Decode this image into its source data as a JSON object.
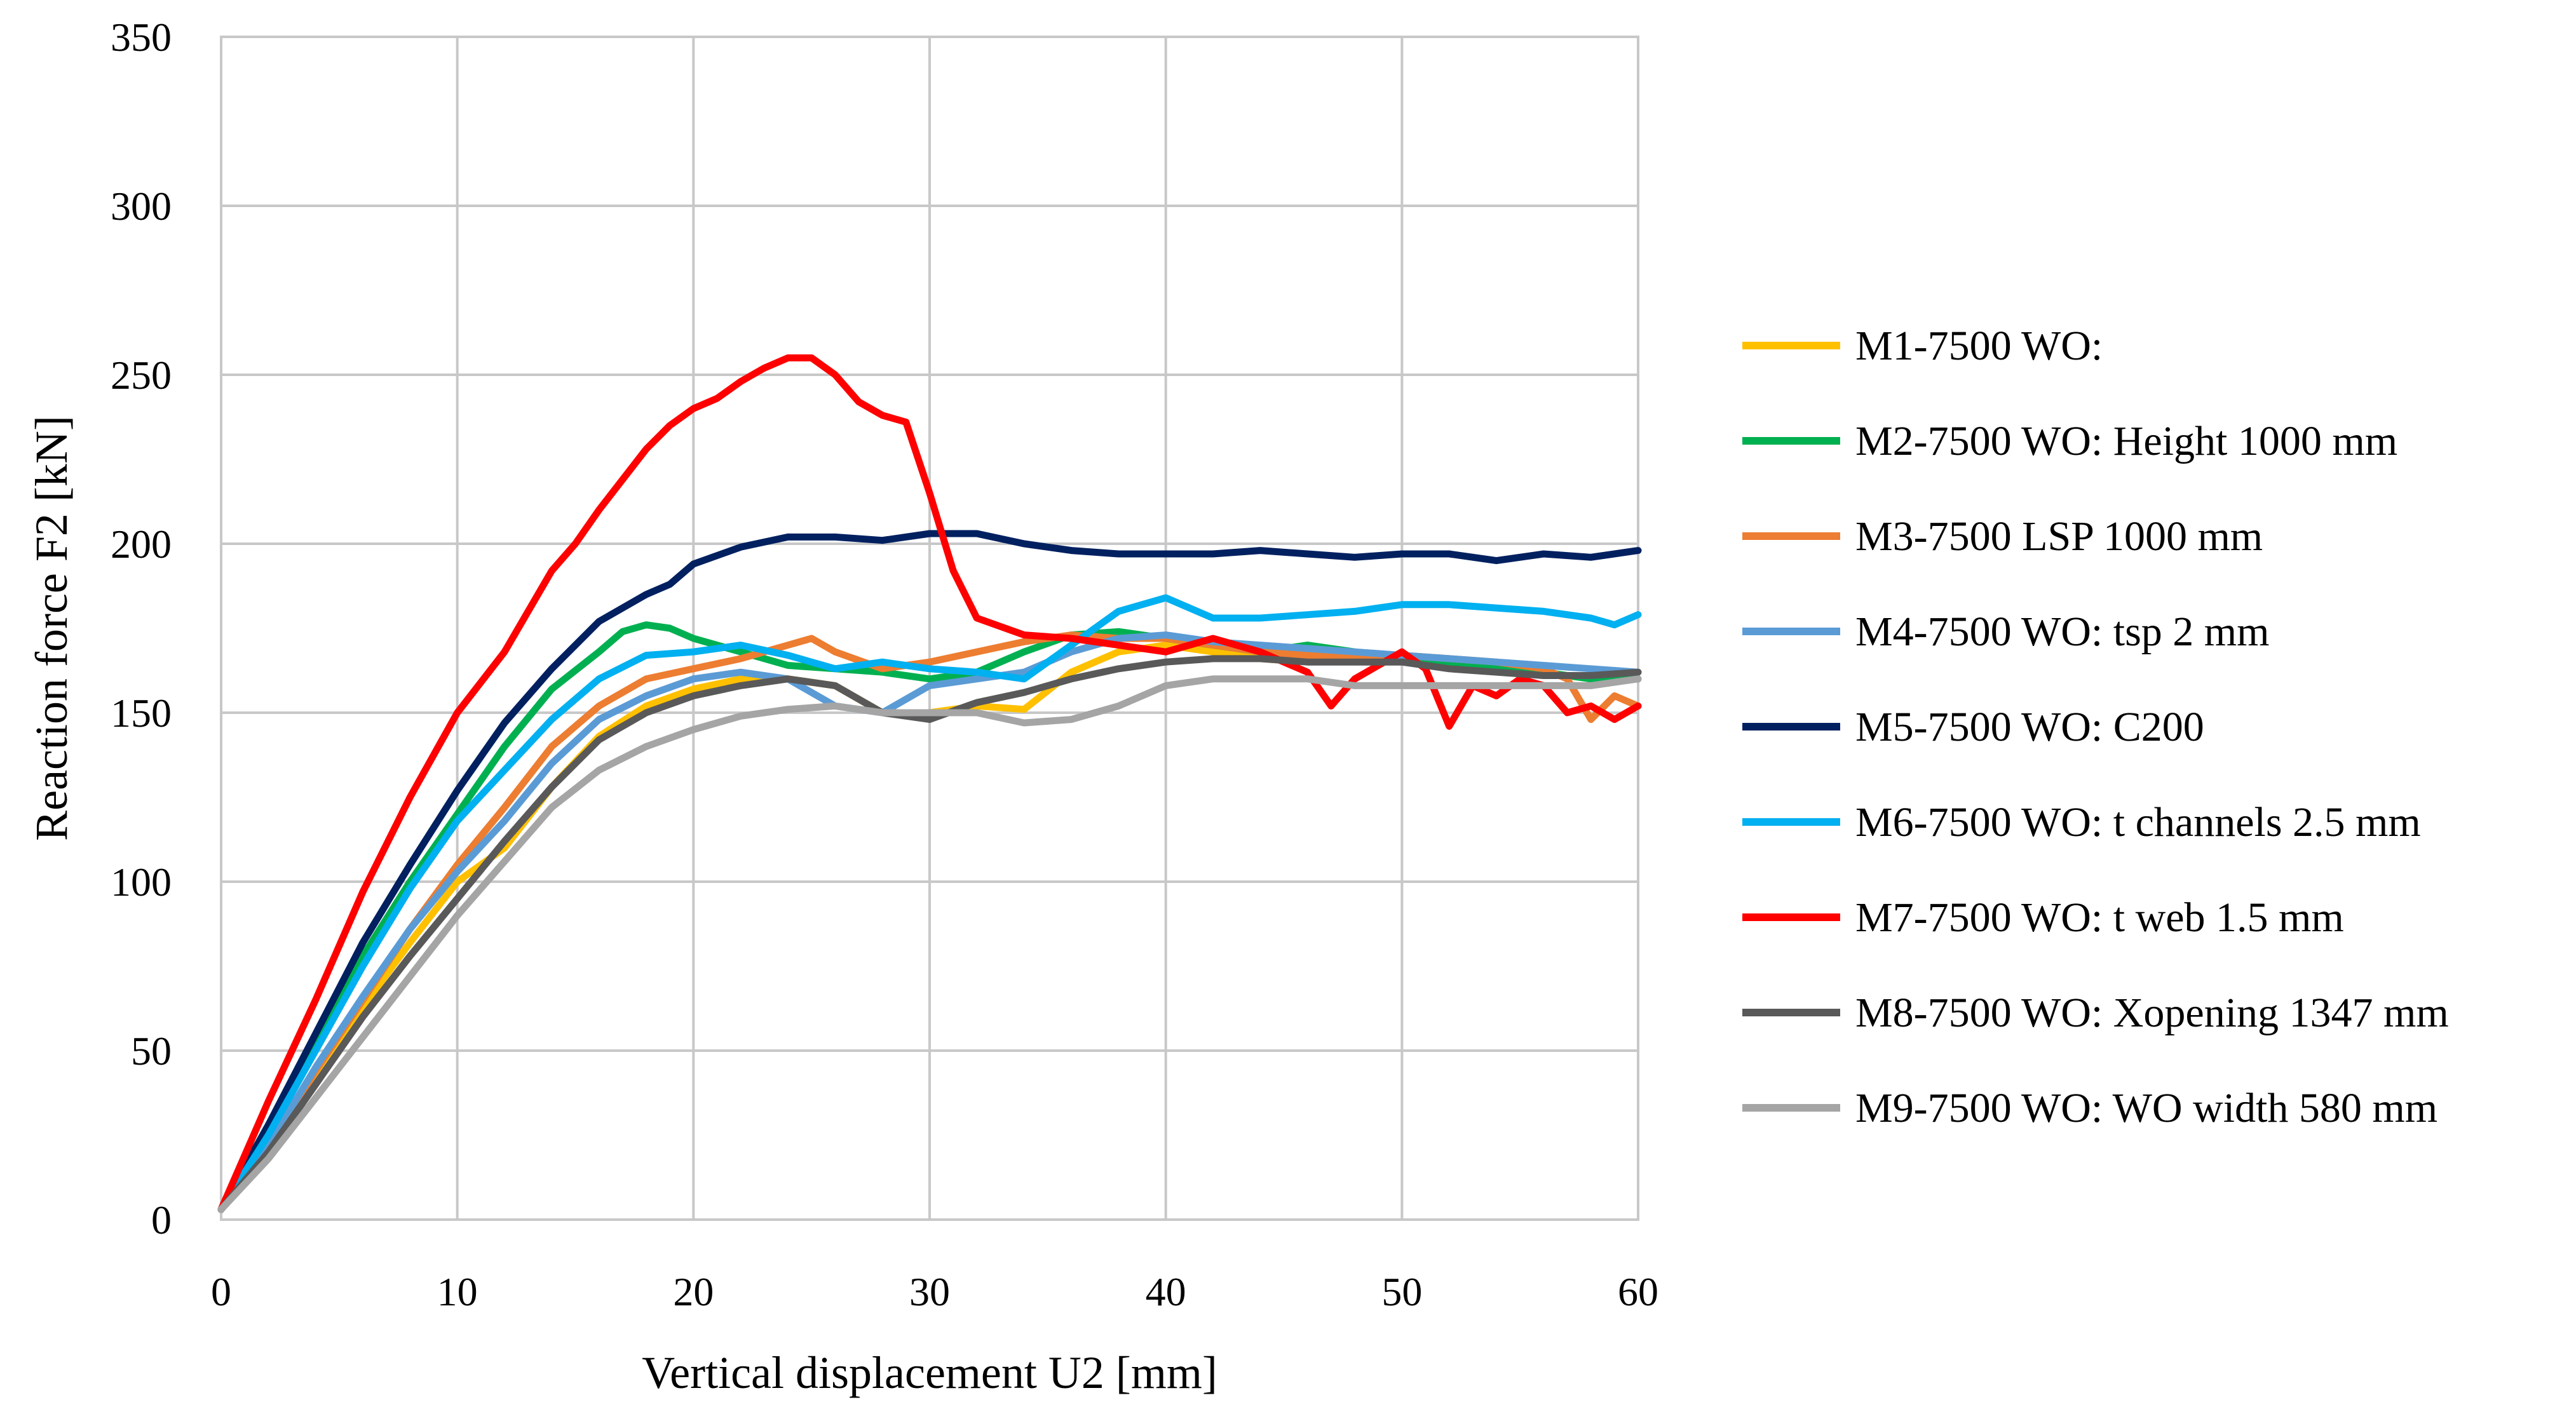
{
  "chart_data": {
    "type": "line",
    "title": "",
    "xlabel": "Vertical displacement U2 [mm]",
    "ylabel": "Reaction force F2 [kN]",
    "xlim": [
      0,
      60
    ],
    "ylim": [
      0,
      350
    ],
    "xticks": [
      0,
      10,
      20,
      30,
      40,
      50,
      60
    ],
    "yticks": [
      0,
      50,
      100,
      150,
      200,
      250,
      300,
      350
    ],
    "grid": true,
    "legend_position": "right",
    "series": [
      {
        "name": "M1-7500 WO:",
        "color": "#FFC000",
        "x": [
          0,
          2,
          4,
          6,
          8,
          10,
          12,
          14,
          16,
          18,
          20,
          22,
          24,
          26,
          28,
          30,
          32,
          34,
          36,
          38,
          40,
          42,
          44,
          46,
          48,
          50,
          52,
          54,
          56,
          58,
          60
        ],
        "y": [
          3,
          22,
          43,
          63,
          82,
          100,
          110,
          128,
          143,
          152,
          157,
          160,
          160,
          158,
          150,
          150,
          152,
          151,
          162,
          168,
          170,
          168,
          166,
          165,
          166,
          166,
          165,
          163,
          162,
          160,
          160
        ]
      },
      {
        "name": "M2-7500 WO: Height 1000 mm",
        "color": "#00B050",
        "x": [
          0,
          2,
          4,
          6,
          8,
          10,
          12,
          14,
          16,
          17,
          18,
          19,
          20,
          22,
          24,
          26,
          28,
          30,
          32,
          34,
          36,
          38,
          40,
          42,
          44,
          46,
          48,
          50,
          52,
          54,
          56,
          58,
          60
        ],
        "y": [
          3,
          28,
          52,
          78,
          100,
          120,
          140,
          157,
          168,
          174,
          176,
          175,
          172,
          168,
          164,
          163,
          162,
          160,
          162,
          168,
          173,
          174,
          172,
          170,
          168,
          170,
          168,
          166,
          165,
          163,
          162,
          160,
          160
        ]
      },
      {
        "name": "M3-7500 LSP 1000 mm",
        "color": "#ED7D31",
        "x": [
          0,
          2,
          4,
          6,
          8,
          10,
          12,
          14,
          16,
          18,
          20,
          22,
          24,
          25,
          26,
          28,
          30,
          32,
          34,
          36,
          38,
          40,
          42,
          44,
          46,
          48,
          50,
          52,
          54,
          56,
          57,
          58,
          59,
          60
        ],
        "y": [
          3,
          22,
          44,
          65,
          86,
          105,
          122,
          140,
          152,
          160,
          163,
          166,
          170,
          172,
          168,
          163,
          165,
          168,
          171,
          173,
          172,
          172,
          170,
          168,
          167,
          166,
          167,
          166,
          165,
          163,
          160,
          148,
          155,
          152
        ]
      },
      {
        "name": "M4-7500 WO: tsp 2 mm",
        "color": "#5B9BD5",
        "x": [
          0,
          2,
          4,
          6,
          8,
          10,
          12,
          14,
          16,
          18,
          20,
          22,
          24,
          26,
          28,
          30,
          32,
          34,
          36,
          38,
          40,
          42,
          44,
          46,
          48,
          50,
          52,
          54,
          56,
          58,
          60
        ],
        "y": [
          3,
          22,
          45,
          66,
          86,
          103,
          118,
          135,
          148,
          155,
          160,
          162,
          160,
          152,
          150,
          158,
          160,
          162,
          168,
          172,
          173,
          171,
          170,
          169,
          168,
          167,
          166,
          165,
          164,
          163,
          162
        ]
      },
      {
        "name": "M5-7500 WO: C200",
        "color": "#002060",
        "x": [
          0,
          2,
          4,
          6,
          8,
          10,
          12,
          14,
          16,
          18,
          19,
          20,
          22,
          24,
          26,
          28,
          30,
          32,
          34,
          36,
          38,
          40,
          42,
          44,
          46,
          48,
          50,
          52,
          54,
          56,
          58,
          60
        ],
        "y": [
          3,
          28,
          55,
          82,
          105,
          127,
          147,
          163,
          177,
          185,
          188,
          194,
          199,
          202,
          202,
          201,
          203,
          203,
          200,
          198,
          197,
          197,
          197,
          198,
          197,
          196,
          197,
          197,
          195,
          197,
          196,
          198
        ]
      },
      {
        "name": "M6-7500 WO: t channels 2.5 mm",
        "color": "#00B0F0",
        "x": [
          0,
          2,
          4,
          6,
          8,
          10,
          12,
          14,
          16,
          18,
          20,
          22,
          24,
          26,
          28,
          30,
          32,
          34,
          36,
          38,
          40,
          42,
          44,
          46,
          48,
          50,
          52,
          54,
          56,
          58,
          59,
          60
        ],
        "y": [
          3,
          25,
          50,
          75,
          98,
          118,
          133,
          148,
          160,
          167,
          168,
          170,
          167,
          163,
          165,
          163,
          162,
          160,
          170,
          180,
          184,
          178,
          178,
          179,
          180,
          182,
          182,
          181,
          180,
          178,
          176,
          179
        ]
      },
      {
        "name": "M7-7500 WO: t web 1.5 mm",
        "color": "#FF0000",
        "x": [
          0,
          2,
          4,
          6,
          8,
          10,
          12,
          14,
          15,
          16,
          18,
          19,
          20,
          21,
          22,
          23,
          24,
          25,
          26,
          27,
          28,
          29,
          30,
          31,
          32,
          34,
          36,
          38,
          40,
          42,
          44,
          46,
          47,
          48,
          50,
          51,
          52,
          53,
          54,
          55,
          56,
          57,
          58,
          59,
          60
        ],
        "y": [
          3,
          35,
          65,
          97,
          125,
          150,
          168,
          192,
          200,
          210,
          228,
          235,
          240,
          243,
          248,
          252,
          255,
          255,
          250,
          242,
          238,
          236,
          215,
          192,
          178,
          173,
          172,
          170,
          168,
          172,
          168,
          162,
          152,
          160,
          168,
          163,
          146,
          158,
          155,
          160,
          158,
          150,
          152,
          148,
          152
        ]
      },
      {
        "name": "M8-7500 WO: Xopening 1347 mm",
        "color": "#595959",
        "x": [
          0,
          2,
          4,
          6,
          8,
          10,
          12,
          14,
          16,
          18,
          20,
          22,
          24,
          26,
          28,
          30,
          32,
          34,
          36,
          38,
          40,
          42,
          44,
          46,
          48,
          50,
          52,
          54,
          56,
          58,
          60
        ],
        "y": [
          3,
          20,
          40,
          60,
          78,
          95,
          112,
          128,
          142,
          150,
          155,
          158,
          160,
          158,
          150,
          148,
          153,
          156,
          160,
          163,
          165,
          166,
          166,
          165,
          165,
          165,
          163,
          162,
          161,
          161,
          162
        ]
      },
      {
        "name": "M9-7500 WO: WO width 580 mm",
        "color": "#A5A5A5",
        "x": [
          0,
          2,
          4,
          6,
          8,
          10,
          12,
          14,
          16,
          18,
          20,
          22,
          24,
          26,
          28,
          30,
          32,
          34,
          36,
          38,
          40,
          42,
          44,
          46,
          48,
          50,
          52,
          54,
          56,
          58,
          60
        ],
        "y": [
          3,
          18,
          36,
          54,
          72,
          90,
          106,
          122,
          133,
          140,
          145,
          149,
          151,
          152,
          150,
          150,
          150,
          147,
          148,
          152,
          158,
          160,
          160,
          160,
          158,
          158,
          158,
          158,
          158,
          158,
          160
        ]
      }
    ]
  }
}
